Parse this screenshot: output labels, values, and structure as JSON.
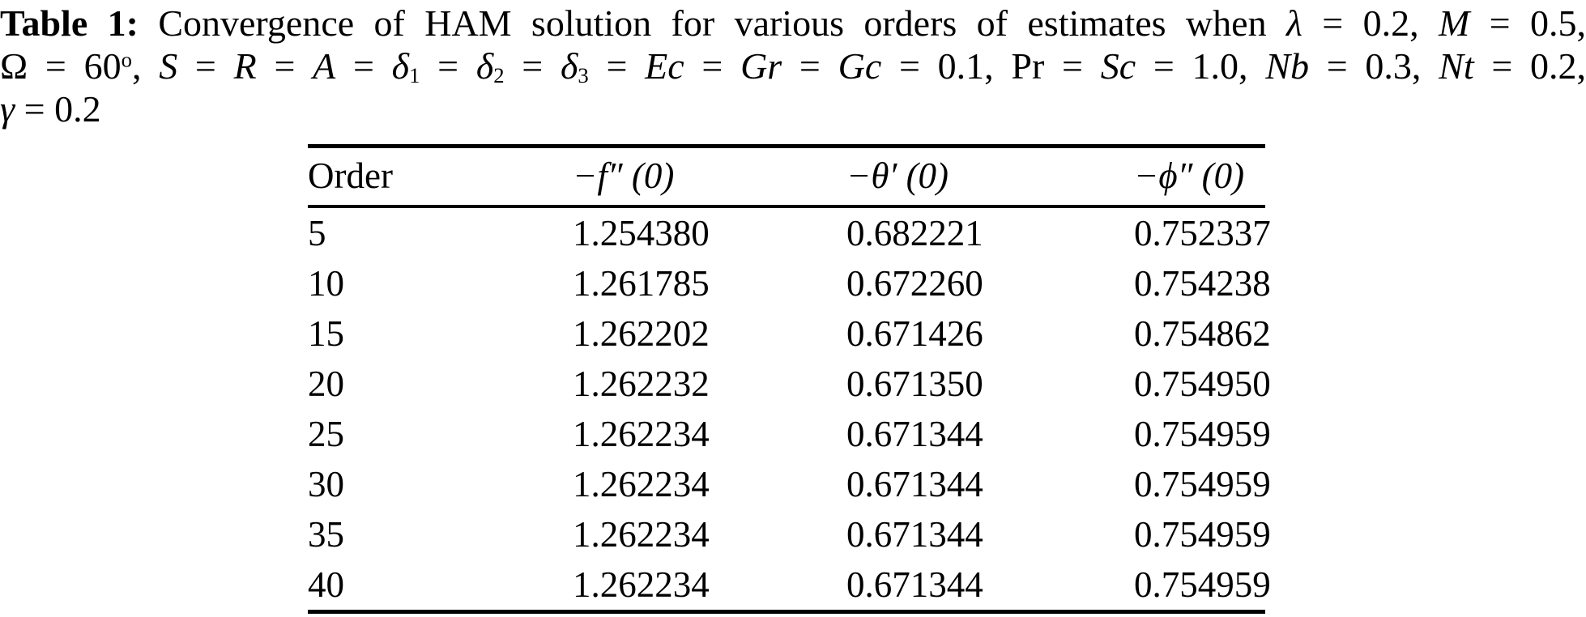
{
  "page": {
    "background_color": "#ffffff",
    "text_color": "#000000"
  },
  "caption": {
    "lines": [
      {
        "segments": [
          {
            "t": "Table 1:",
            "s": "b"
          },
          {
            "t": " Convergence of HAM solution for various orders of estimates when ",
            "s": "p"
          },
          {
            "t": "λ",
            "s": "i"
          },
          {
            "t": " = 0.2, ",
            "s": "p"
          },
          {
            "t": "M",
            "s": "i"
          },
          {
            "t": " = 0.5,",
            "s": "p"
          }
        ]
      },
      {
        "segments": [
          {
            "t": "Ω",
            "s": "p"
          },
          {
            "t": " = 60",
            "s": "p"
          },
          {
            "t": "o",
            "s": "sup"
          },
          {
            "t": ", ",
            "s": "p"
          },
          {
            "t": "S",
            "s": "i"
          },
          {
            "t": " = ",
            "s": "p"
          },
          {
            "t": "R",
            "s": "i"
          },
          {
            "t": " = ",
            "s": "p"
          },
          {
            "t": "A",
            "s": "i"
          },
          {
            "t": " = ",
            "s": "p"
          },
          {
            "t": "δ",
            "s": "i"
          },
          {
            "t": "1",
            "s": "sub"
          },
          {
            "t": " = ",
            "s": "p"
          },
          {
            "t": "δ",
            "s": "i"
          },
          {
            "t": "2",
            "s": "sub"
          },
          {
            "t": " = ",
            "s": "p"
          },
          {
            "t": "δ",
            "s": "i"
          },
          {
            "t": "3",
            "s": "sub"
          },
          {
            "t": " = ",
            "s": "p"
          },
          {
            "t": "Ec",
            "s": "i"
          },
          {
            "t": " = ",
            "s": "p"
          },
          {
            "t": "Gr",
            "s": "i"
          },
          {
            "t": " = ",
            "s": "p"
          },
          {
            "t": "Gc",
            "s": "i"
          },
          {
            "t": " = 0.1, Pr = ",
            "s": "p"
          },
          {
            "t": "Sc",
            "s": "i"
          },
          {
            "t": " = 1.0, ",
            "s": "p"
          },
          {
            "t": "Nb",
            "s": "i"
          },
          {
            "t": " = 0.3, ",
            "s": "p"
          },
          {
            "t": "Nt",
            "s": "i"
          },
          {
            "t": " = 0.2,",
            "s": "p"
          }
        ]
      },
      {
        "segments": [
          {
            "t": "γ",
            "s": "i"
          },
          {
            "t": " = 0.2",
            "s": "p"
          }
        ]
      }
    ]
  },
  "table": {
    "columns": [
      {
        "key": "order",
        "label": "Order"
      },
      {
        "key": "f-double-prime-at-0",
        "label": "−f″ (0)"
      },
      {
        "key": "theta-prime-at-0",
        "label": "−θ′ (0)"
      },
      {
        "key": "phi-double-prime-at-0",
        "label": "−ϕ″ (0)"
      }
    ],
    "rows": [
      [
        "5",
        "1.254380",
        "0.682221",
        "0.752337"
      ],
      [
        "10",
        "1.261785",
        "0.672260",
        "0.754238"
      ],
      [
        "15",
        "1.262202",
        "0.671426",
        "0.754862"
      ],
      [
        "20",
        "1.262232",
        "0.671350",
        "0.754950"
      ],
      [
        "25",
        "1.262234",
        "0.671344",
        "0.754959"
      ],
      [
        "30",
        "1.262234",
        "0.671344",
        "0.754959"
      ],
      [
        "35",
        "1.262234",
        "0.671344",
        "0.754959"
      ],
      [
        "40",
        "1.262234",
        "0.671344",
        "0.754959"
      ]
    ]
  }
}
